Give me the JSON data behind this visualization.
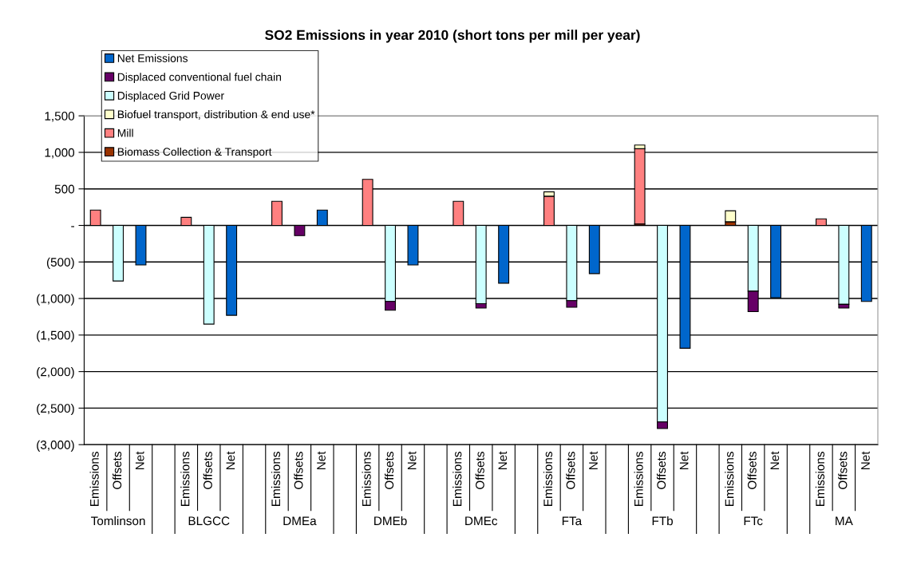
{
  "chart_data": {
    "type": "bar",
    "stacked": true,
    "title": "SO2 Emissions in year 2010 (short tons per mill per year)",
    "categories": [
      "Emissions",
      "Offsets",
      "Net",
      null,
      "Emissions",
      "Offsets",
      "Net",
      null,
      "Emissions",
      "Offsets",
      "Net",
      null,
      "Emissions",
      "Offsets",
      "Net",
      null,
      "Emissions",
      "Offsets",
      "Net",
      null,
      "Emissions",
      "Offsets",
      "Net",
      null,
      "Emissions",
      "Offsets",
      "Net",
      null,
      "Emissions",
      "Offsets",
      "Net",
      null,
      "Emissions",
      "Offsets",
      "Net"
    ],
    "annotations": [
      "Tomlinson",
      "BLGCC",
      "DMEa",
      "DMEb",
      "DMEc",
      "FTa",
      "FTb",
      "FTc",
      "MA"
    ],
    "series": [
      {
        "name": "Biomass Collection & Transport",
        "color": "#993300",
        "values": [
          null,
          null,
          null,
          null,
          null,
          null,
          null,
          null,
          null,
          null,
          null,
          null,
          null,
          null,
          null,
          null,
          null,
          null,
          null,
          null,
          null,
          null,
          null,
          null,
          20,
          null,
          null,
          null,
          50,
          null,
          null,
          null,
          null,
          null,
          null
        ]
      },
      {
        "name": "Mill",
        "color": "#ff8080",
        "values": [
          210,
          null,
          null,
          null,
          110,
          null,
          null,
          null,
          330,
          null,
          null,
          null,
          630,
          null,
          null,
          null,
          330,
          null,
          null,
          null,
          400,
          null,
          null,
          null,
          1030,
          null,
          null,
          null,
          null,
          null,
          null,
          null,
          90,
          null,
          null
        ]
      },
      {
        "name": "Biofuel transport, distribution & end use*",
        "color": "#ffffcc",
        "values": [
          null,
          null,
          null,
          null,
          null,
          null,
          null,
          null,
          null,
          null,
          null,
          null,
          null,
          null,
          null,
          null,
          null,
          null,
          null,
          null,
          60,
          null,
          null,
          null,
          50,
          null,
          null,
          null,
          150,
          null,
          null,
          null,
          null,
          null,
          null
        ]
      },
      {
        "name": "Displaced Grid Power",
        "color": "#ccffff",
        "values": [
          null,
          -760,
          null,
          null,
          null,
          -1350,
          null,
          null,
          null,
          null,
          null,
          null,
          null,
          -1040,
          null,
          null,
          null,
          -1070,
          null,
          null,
          null,
          -1030,
          null,
          null,
          null,
          -2690,
          null,
          null,
          null,
          -900,
          null,
          null,
          null,
          -1080,
          null
        ]
      },
      {
        "name": "Displaced conventional fuel chain",
        "color": "#660066",
        "values": [
          null,
          null,
          null,
          null,
          null,
          null,
          null,
          null,
          null,
          -140,
          null,
          null,
          null,
          -120,
          null,
          null,
          null,
          -60,
          null,
          null,
          null,
          -90,
          null,
          null,
          null,
          -90,
          null,
          null,
          null,
          -280,
          null,
          null,
          null,
          -50,
          null
        ]
      },
      {
        "name": "Net Emissions",
        "color": "#0066cc",
        "values": [
          null,
          null,
          -540,
          null,
          null,
          null,
          -1230,
          null,
          null,
          null,
          210,
          null,
          null,
          null,
          -540,
          null,
          null,
          null,
          -790,
          null,
          null,
          null,
          -660,
          null,
          null,
          null,
          -1680,
          null,
          null,
          null,
          -990,
          null,
          null,
          null,
          -1040
        ]
      }
    ],
    "ylim": [
      -3000,
      1500
    ],
    "yticks": [
      {
        "value": -3000,
        "label": "(3,000)"
      },
      {
        "value": -2500,
        "label": "(2,500)"
      },
      {
        "value": -2000,
        "label": "(2,000)"
      },
      {
        "value": -1500,
        "label": "(1,500)"
      },
      {
        "value": -1000,
        "label": "(1,000)"
      },
      {
        "value": -500,
        "label": "(500)"
      },
      {
        "value": 0,
        "label": "-"
      },
      {
        "value": 500,
        "label": "500"
      },
      {
        "value": 1000,
        "label": "1,000"
      },
      {
        "value": 1500,
        "label": "1,500"
      }
    ],
    "grid": "y",
    "legend": "top left"
  }
}
